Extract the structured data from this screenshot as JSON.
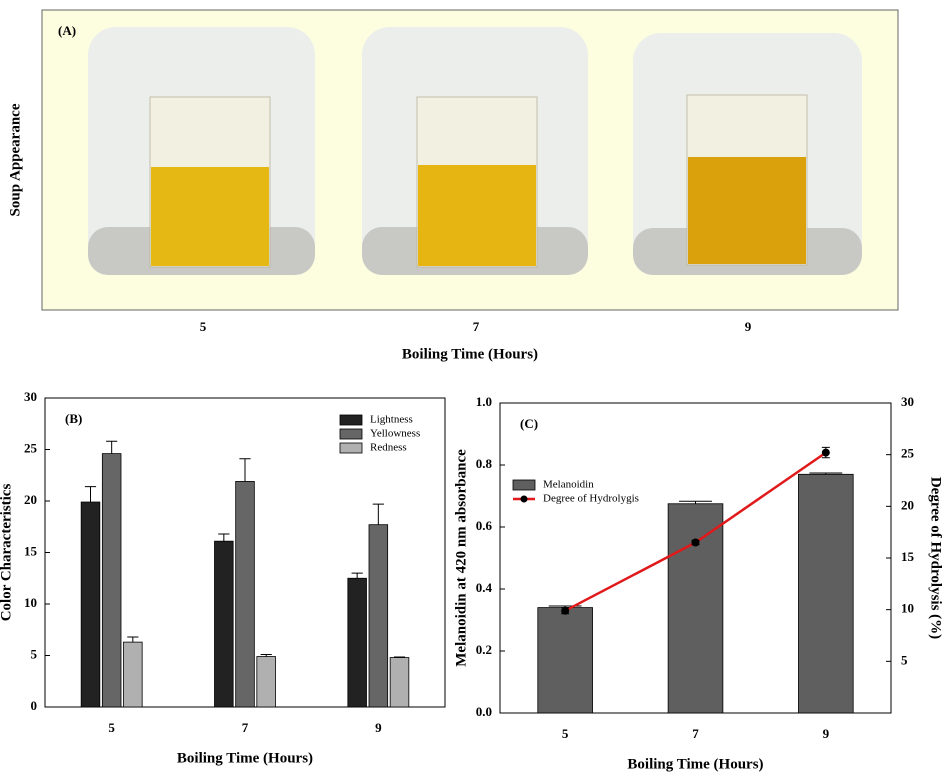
{
  "panel_a": {
    "label": "(A)",
    "ylabel": "Soup Appearance",
    "categories": [
      "5",
      "7",
      "9"
    ],
    "xlabel": "Boiling Time (Hours)"
  },
  "chart_data": [
    {
      "type": "bar",
      "panel_label": "(B)",
      "xlabel": "Boiling Time (Hours)",
      "ylabel": "Color Characteristics",
      "categories": [
        "5",
        "7",
        "9"
      ],
      "ylim": [
        0,
        30
      ],
      "yticks": [
        0,
        5,
        10,
        15,
        20,
        25,
        30
      ],
      "legend": "upper right",
      "series": [
        {
          "name": "Lightness",
          "type": "bar",
          "color": "#222222",
          "values": [
            19.9,
            16.1,
            12.5
          ],
          "errors": [
            1.5,
            0.7,
            0.5
          ]
        },
        {
          "name": "Yellowness",
          "type": "bar",
          "color": "#666666",
          "values": [
            24.6,
            21.9,
            17.7
          ],
          "errors": [
            1.2,
            2.2,
            2.0
          ]
        },
        {
          "name": "Redness",
          "type": "bar",
          "color": "#b0b0b0",
          "values": [
            6.3,
            4.9,
            4.8
          ],
          "errors": [
            0.5,
            0.2,
            0.05
          ]
        }
      ]
    },
    {
      "type": "bar-line",
      "panel_label": "(C)",
      "xlabel": "Boiling Time (Hours)",
      "ylabel": "Melanoidin at 420 nm absorbance",
      "y2label": "Degree of Hydrolysis (%)",
      "categories": [
        "5",
        "7",
        "9"
      ],
      "ylim": [
        0,
        1
      ],
      "yticks": [
        {
          "value": 0,
          "label": "0.0"
        },
        0.2,
        0.4,
        0.6,
        0.8,
        {
          "value": 1,
          "label": "1.0"
        }
      ],
      "y2lim": [
        0,
        30
      ],
      "y2ticks": [
        5,
        10,
        15,
        20,
        25,
        30
      ],
      "legend": "center left",
      "series": [
        {
          "name": "Melanoidin",
          "type": "bar",
          "color": "#5f5f5f",
          "values": [
            0.34,
            0.675,
            0.77
          ],
          "errors": [
            0.005,
            0.008,
            0.004
          ]
        },
        {
          "name": "Degree of Hydrolygis",
          "type": "line",
          "axis": "y2",
          "color": "#e0191b",
          "values": [
            9.9,
            16.5,
            25.2
          ],
          "errors": [
            0.3,
            0.2,
            0.5
          ]
        }
      ]
    }
  ]
}
